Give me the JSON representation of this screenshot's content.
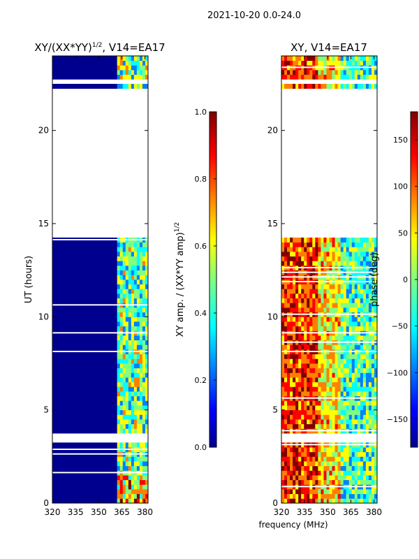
{
  "suptitle": "2021-10-20 0.0-24.0",
  "xlabel": "frequency (MHz)",
  "colormap": [
    "#00008f",
    "#0000ff",
    "#0080ff",
    "#00ffff",
    "#80ff80",
    "#ffff00",
    "#ff8000",
    "#ff0000",
    "#800000"
  ],
  "chart_data": [
    {
      "type": "heatmap",
      "title": "XY/(XX*YY)",
      "title_exp": "1/2",
      "title_suffix": ", V14=EA17",
      "ylabel": "UT (hours)",
      "xlim": [
        320,
        382
      ],
      "ylim": [
        0,
        24
      ],
      "xticks": [
        320,
        335,
        350,
        365,
        380
      ],
      "yticks": [
        0,
        5,
        10,
        15,
        20
      ],
      "gaps_ut": [
        [
          3.45,
          3.6
        ],
        [
          14.25,
          22.05
        ],
        [
          22.55,
          22.7
        ]
      ],
      "colorbar": {
        "label": "XY amp. / (XX*YY amp)",
        "label_exp": "1/2",
        "range": [
          0.0,
          1.0
        ],
        "ticks": [
          "0.0",
          "0.2",
          "0.4",
          "0.6",
          "0.8",
          "1.0"
        ]
      }
    },
    {
      "type": "heatmap",
      "title": "XY, V14=EA17",
      "ylabel": "",
      "xlim": [
        320,
        382
      ],
      "ylim": [
        0,
        24
      ],
      "xticks": [
        320,
        335,
        350,
        365,
        380
      ],
      "yticks": [
        0,
        5,
        10,
        15,
        20
      ],
      "gaps_ut": [
        [
          3.45,
          3.6
        ],
        [
          14.25,
          22.05
        ],
        [
          22.55,
          22.7
        ]
      ],
      "colorbar": {
        "label": "phase (deg)",
        "range": [
          -180,
          180
        ],
        "ticks": [
          "−150",
          "−100",
          "−50",
          "0",
          "50",
          "100",
          "150"
        ]
      }
    }
  ]
}
